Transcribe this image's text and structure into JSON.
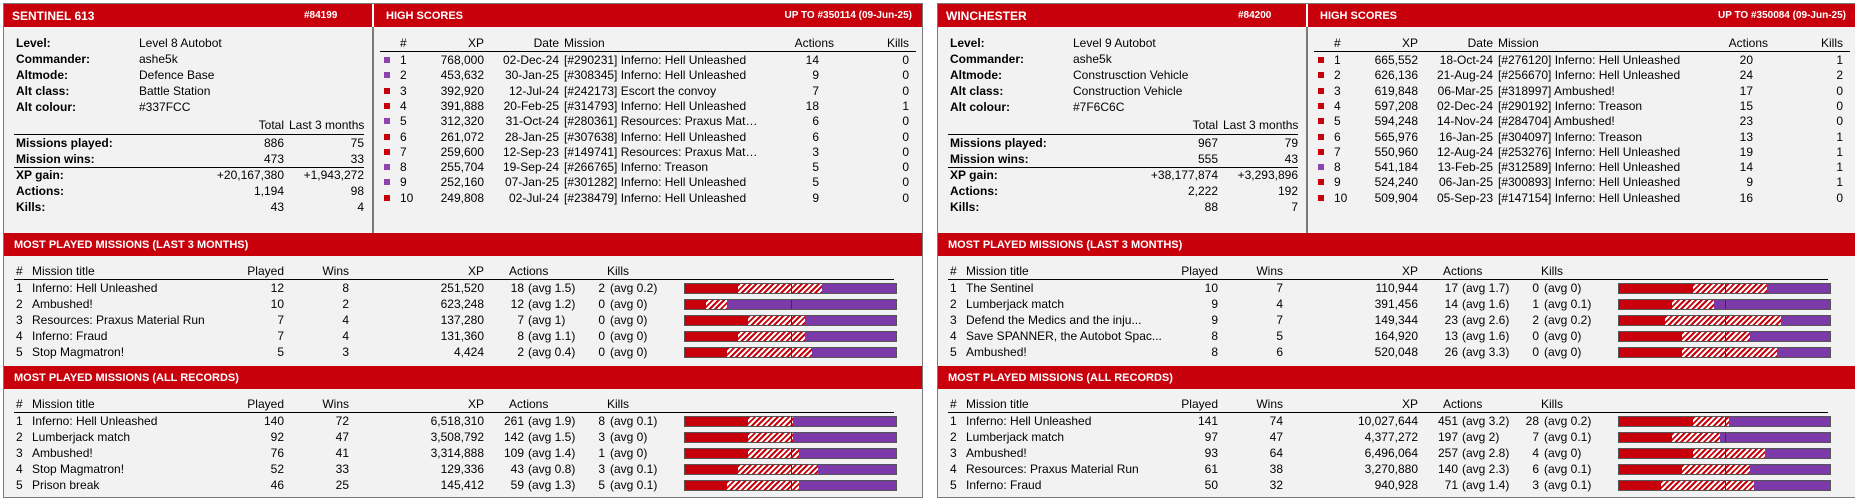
{
  "colors": {
    "header_red": "#c8000b",
    "win_red": "#c8000b",
    "loss_purple": "#7c3aa8"
  },
  "labels": {
    "level": "Level:",
    "commander": "Commander:",
    "altmode": "Altmode:",
    "alt_class": "Alt class:",
    "alt_colour": "Alt colour:",
    "total": "Total",
    "last3": "Last 3 months",
    "missions_played": "Missions played:",
    "mission_wins": "Mission wins:",
    "xp_gain": "XP gain:",
    "actions": "Actions:",
    "kills": "Kills:",
    "hs_title": "HIGH SCORES",
    "hs_cols": {
      "num": "#",
      "xp": "XP",
      "date": "Date",
      "mission": "Mission",
      "actions": "Actions",
      "kills": "Kills"
    },
    "recent_title": "MOST PLAYED MISSIONS (LAST 3 MONTHS)",
    "all_title": "MOST PLAYED MISSIONS (ALL RECORDS)",
    "mp_cols": {
      "num": "#",
      "title": "Mission title",
      "played": "Played",
      "wins": "Wins",
      "xp": "XP",
      "actions": "Actions",
      "kills": "Kills"
    }
  },
  "players": [
    {
      "name": "SENTINEL 613",
      "id": "#84199",
      "hs_range": "UP TO #350114 (09-Jun-25)",
      "info": {
        "level": "Level 8 Autobot",
        "commander": "ashe5k",
        "altmode": "Defence Base",
        "alt_class": "Battle Station",
        "alt_colour": "#337FCC"
      },
      "stats": {
        "missions_played": [
          "886",
          "75"
        ],
        "mission_wins": [
          "473",
          "33"
        ],
        "xp_gain": [
          "+20,167,380",
          "+1,943,272"
        ],
        "actions": [
          "1,194",
          "98"
        ],
        "kills": [
          "43",
          "4"
        ]
      },
      "high_scores": [
        {
          "n": "1",
          "xp": "768,000",
          "date": "02-Dec-24",
          "mission": "[#290231] Inferno: Hell Unleashed",
          "actions": "14",
          "kills": "0",
          "color": "#8e44ad"
        },
        {
          "n": "2",
          "xp": "453,632",
          "date": "30-Jan-25",
          "mission": "[#308345] Inferno: Hell Unleashed",
          "actions": "9",
          "kills": "0",
          "color": "#8e44ad"
        },
        {
          "n": "3",
          "xp": "392,920",
          "date": "12-Jul-24",
          "mission": "[#242173] Escort the convoy",
          "actions": "7",
          "kills": "0",
          "color": "#c8000b"
        },
        {
          "n": "4",
          "xp": "391,888",
          "date": "20-Feb-25",
          "mission": "[#314793] Inferno: Hell Unleashed",
          "actions": "18",
          "kills": "1",
          "color": "#c8000b"
        },
        {
          "n": "5",
          "xp": "312,320",
          "date": "31-Oct-24",
          "mission": "[#280361] Resources: Praxus Materia...",
          "actions": "6",
          "kills": "0",
          "color": "#8e44ad"
        },
        {
          "n": "6",
          "xp": "261,072",
          "date": "28-Jan-25",
          "mission": "[#307638] Inferno: Hell Unleashed",
          "actions": "6",
          "kills": "0",
          "color": "#c8000b"
        },
        {
          "n": "7",
          "xp": "259,600",
          "date": "12-Sep-23",
          "mission": "[#149741] Resources: Praxus Materia...",
          "actions": "3",
          "kills": "0",
          "color": "#c8000b"
        },
        {
          "n": "8",
          "xp": "255,704",
          "date": "19-Sep-24",
          "mission": "[#266765] Inferno: Treason",
          "actions": "5",
          "kills": "0",
          "color": "#8e44ad"
        },
        {
          "n": "9",
          "xp": "252,160",
          "date": "07-Jan-25",
          "mission": "[#301282] Inferno: Hell Unleashed",
          "actions": "5",
          "kills": "0",
          "color": "#8e44ad"
        },
        {
          "n": "10",
          "xp": "249,808",
          "date": "02-Jul-24",
          "mission": "[#238479] Inferno: Hell Unleashed",
          "actions": "9",
          "kills": "0",
          "color": "#c8000b"
        }
      ],
      "recent": [
        {
          "n": "1",
          "title": "Inferno: Hell Unleashed",
          "played": "12",
          "wins": "8",
          "xp": "251,520",
          "actions": "18",
          "avg_a": "(avg 1.5)",
          "kills": "2",
          "avg_k": "(avg 0.2)",
          "bar": [
            0.25,
            0.4,
            0.35
          ]
        },
        {
          "n": "2",
          "title": "Ambushed!",
          "played": "10",
          "wins": "2",
          "xp": "623,248",
          "actions": "12",
          "avg_a": "(avg 1.2)",
          "kills": "0",
          "avg_k": "(avg 0)",
          "bar": [
            0.1,
            0.1,
            0.8
          ]
        },
        {
          "n": "3",
          "title": "Resources: Praxus Material Run",
          "played": "7",
          "wins": "4",
          "xp": "137,280",
          "actions": "7",
          "avg_a": "(avg 1)",
          "kills": "0",
          "avg_k": "(avg 0)",
          "bar": [
            0.3,
            0.27,
            0.43
          ]
        },
        {
          "n": "4",
          "title": "Inferno: Fraud",
          "played": "7",
          "wins": "4",
          "xp": "131,360",
          "actions": "8",
          "avg_a": "(avg 1.1)",
          "kills": "0",
          "avg_k": "(avg 0)",
          "bar": [
            0.25,
            0.32,
            0.43
          ]
        },
        {
          "n": "5",
          "title": "Stop Magmatron!",
          "played": "5",
          "wins": "3",
          "xp": "4,424",
          "actions": "2",
          "avg_a": "(avg 0.4)",
          "kills": "0",
          "avg_k": "(avg 0)",
          "bar": [
            0.2,
            0.4,
            0.4
          ]
        }
      ],
      "all": [
        {
          "n": "1",
          "title": "Inferno: Hell Unleashed",
          "played": "140",
          "wins": "72",
          "xp": "6,518,310",
          "actions": "261",
          "avg_a": "(avg 1.9)",
          "kills": "8",
          "avg_k": "(avg 0.1)",
          "bar": [
            0.3,
            0.21,
            0.49
          ]
        },
        {
          "n": "2",
          "title": "Lumberjack match",
          "played": "92",
          "wins": "47",
          "xp": "3,508,792",
          "actions": "142",
          "avg_a": "(avg 1.5)",
          "kills": "3",
          "avg_k": "(avg 0)",
          "bar": [
            0.3,
            0.21,
            0.49
          ]
        },
        {
          "n": "3",
          "title": "Ambushed!",
          "played": "76",
          "wins": "41",
          "xp": "3,314,888",
          "actions": "109",
          "avg_a": "(avg 1.4)",
          "kills": "1",
          "avg_k": "(avg 0)",
          "bar": [
            0.3,
            0.24,
            0.46
          ]
        },
        {
          "n": "4",
          "title": "Stop Magmatron!",
          "played": "52",
          "wins": "33",
          "xp": "129,336",
          "actions": "43",
          "avg_a": "(avg 0.8)",
          "kills": "3",
          "avg_k": "(avg 0.1)",
          "bar": [
            0.25,
            0.38,
            0.37
          ]
        },
        {
          "n": "5",
          "title": "Prison break",
          "played": "46",
          "wins": "25",
          "xp": "145,412",
          "actions": "59",
          "avg_a": "(avg 1.3)",
          "kills": "5",
          "avg_k": "(avg 0.1)",
          "bar": [
            0.2,
            0.34,
            0.46
          ]
        }
      ]
    },
    {
      "name": "WINCHESTER",
      "id": "#84200",
      "hs_range": "UP TO #350084 (09-Jun-25)",
      "info": {
        "level": "Level 9 Autobot",
        "commander": "ashe5k",
        "altmode": "Construsction Vehicle",
        "alt_class": "Construction Vehicle",
        "alt_colour": "#7F6C6C"
      },
      "stats": {
        "missions_played": [
          "967",
          "79"
        ],
        "mission_wins": [
          "555",
          "43"
        ],
        "xp_gain": [
          "+38,177,874",
          "+3,293,896"
        ],
        "actions": [
          "2,222",
          "192"
        ],
        "kills": [
          "88",
          "7"
        ]
      },
      "high_scores": [
        {
          "n": "1",
          "xp": "665,552",
          "date": "18-Oct-24",
          "mission": "[#276120] Inferno: Hell Unleashed",
          "actions": "20",
          "kills": "1",
          "color": "#c8000b"
        },
        {
          "n": "2",
          "xp": "626,136",
          "date": "21-Aug-24",
          "mission": "[#256670] Inferno: Hell Unleashed",
          "actions": "24",
          "kills": "2",
          "color": "#c8000b"
        },
        {
          "n": "3",
          "xp": "619,848",
          "date": "06-Mar-25",
          "mission": "[#318997] Ambushed!",
          "actions": "17",
          "kills": "0",
          "color": "#c8000b"
        },
        {
          "n": "4",
          "xp": "597,208",
          "date": "02-Dec-24",
          "mission": "[#290192] Inferno: Treason",
          "actions": "15",
          "kills": "0",
          "color": "#c8000b"
        },
        {
          "n": "5",
          "xp": "594,248",
          "date": "14-Nov-24",
          "mission": "[#284704] Ambushed!",
          "actions": "23",
          "kills": "0",
          "color": "#c8000b"
        },
        {
          "n": "6",
          "xp": "565,976",
          "date": "16-Jan-25",
          "mission": "[#304097] Inferno: Treason",
          "actions": "13",
          "kills": "1",
          "color": "#c8000b"
        },
        {
          "n": "7",
          "xp": "550,960",
          "date": "12-Aug-24",
          "mission": "[#253276] Inferno: Hell Unleashed",
          "actions": "19",
          "kills": "1",
          "color": "#c8000b"
        },
        {
          "n": "8",
          "xp": "541,184",
          "date": "13-Feb-25",
          "mission": "[#312589] Inferno: Hell Unleashed",
          "actions": "14",
          "kills": "1",
          "color": "#8e44ad"
        },
        {
          "n": "9",
          "xp": "524,240",
          "date": "06-Jan-25",
          "mission": "[#300893] Inferno: Hell Unleashed",
          "actions": "9",
          "kills": "1",
          "color": "#c8000b"
        },
        {
          "n": "10",
          "xp": "509,904",
          "date": "05-Sep-23",
          "mission": "[#147154] Inferno: Hell Unleashed",
          "actions": "16",
          "kills": "0",
          "color": "#c8000b"
        }
      ],
      "recent": [
        {
          "n": "1",
          "title": "The Sentinel",
          "played": "10",
          "wins": "7",
          "xp": "110,944",
          "actions": "17",
          "avg_a": "(avg 1.7)",
          "kills": "0",
          "avg_k": "(avg 0)",
          "bar": [
            0.35,
            0.35,
            0.3
          ]
        },
        {
          "n": "2",
          "title": "Lumberjack match",
          "played": "9",
          "wins": "4",
          "xp": "391,456",
          "actions": "14",
          "avg_a": "(avg 1.6)",
          "kills": "1",
          "avg_k": "(avg 0.1)",
          "bar": [
            0.25,
            0.2,
            0.55
          ]
        },
        {
          "n": "3",
          "title": "Defend the Medics and the inju...",
          "played": "9",
          "wins": "7",
          "xp": "149,344",
          "actions": "23",
          "avg_a": "(avg 2.6)",
          "kills": "2",
          "avg_k": "(avg 0.2)",
          "bar": [
            0.22,
            0.55,
            0.23
          ]
        },
        {
          "n": "4",
          "title": "Save SPANNER, the Autobot Spac...",
          "played": "8",
          "wins": "5",
          "xp": "164,920",
          "actions": "13",
          "avg_a": "(avg 1.6)",
          "kills": "0",
          "avg_k": "(avg 0)",
          "bar": [
            0.3,
            0.32,
            0.38
          ]
        },
        {
          "n": "5",
          "title": "Ambushed!",
          "played": "8",
          "wins": "6",
          "xp": "520,048",
          "actions": "26",
          "avg_a": "(avg 3.3)",
          "kills": "0",
          "avg_k": "(avg 0)",
          "bar": [
            0.3,
            0.45,
            0.25
          ]
        }
      ],
      "all": [
        {
          "n": "1",
          "title": "Inferno: Hell Unleashed",
          "played": "141",
          "wins": "74",
          "xp": "10,027,644",
          "actions": "451",
          "avg_a": "(avg 3.2)",
          "kills": "28",
          "avg_k": "(avg 0.2)",
          "bar": [
            0.35,
            0.17,
            0.48
          ]
        },
        {
          "n": "2",
          "title": "Lumberjack match",
          "played": "97",
          "wins": "47",
          "xp": "4,377,272",
          "actions": "197",
          "avg_a": "(avg 2)",
          "kills": "7",
          "avg_k": "(avg 0.1)",
          "bar": [
            0.25,
            0.23,
            0.52
          ]
        },
        {
          "n": "3",
          "title": "Ambushed!",
          "played": "93",
          "wins": "64",
          "xp": "6,496,064",
          "actions": "257",
          "avg_a": "(avg 2.8)",
          "kills": "4",
          "avg_k": "(avg 0)",
          "bar": [
            0.35,
            0.34,
            0.31
          ]
        },
        {
          "n": "4",
          "title": "Resources: Praxus Material Run",
          "played": "61",
          "wins": "38",
          "xp": "3,270,880",
          "actions": "140",
          "avg_a": "(avg 2.3)",
          "kills": "6",
          "avg_k": "(avg 0.1)",
          "bar": [
            0.3,
            0.32,
            0.38
          ]
        },
        {
          "n": "5",
          "title": "Inferno: Fraud",
          "played": "50",
          "wins": "32",
          "xp": "940,928",
          "actions": "71",
          "avg_a": "(avg 1.4)",
          "kills": "3",
          "avg_k": "(avg 0.1)",
          "bar": [
            0.2,
            0.44,
            0.36
          ]
        }
      ]
    }
  ]
}
